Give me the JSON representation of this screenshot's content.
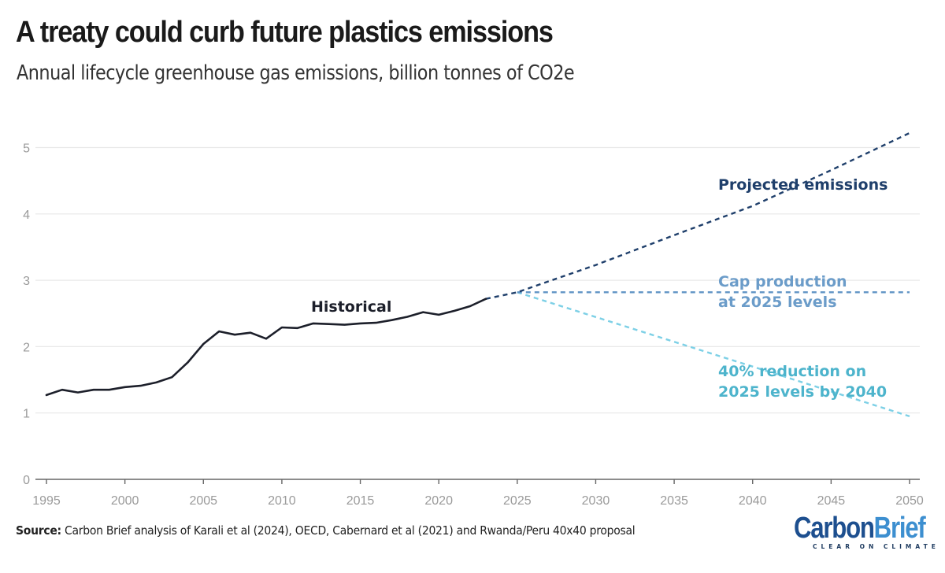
{
  "header": {
    "title": "A treaty could curb future plastics emissions",
    "subtitle": "Annual lifecycle greenhouse gas emissions, billion tonnes of CO2e"
  },
  "footer": {
    "source_label": "Source:",
    "source_text": " Carbon Brief analysis of Karali et al (2024), OECD, Cabernard et al (2021) and Rwanda/Peru 40x40 proposal"
  },
  "logo": {
    "word_part1": "Carbon",
    "word_part2": "Brief",
    "tagline": "CLEAR ON CLIMATE"
  },
  "chart_data": {
    "type": "line",
    "title": "A treaty could curb future plastics emissions",
    "subtitle": "Annual lifecycle greenhouse gas emissions, billion tonnes of CO2e",
    "xlabel": "",
    "ylabel": "",
    "xlim": [
      1995,
      2050
    ],
    "ylim": [
      0,
      5.3
    ],
    "x_ticks": [
      1995,
      2000,
      2005,
      2010,
      2015,
      2020,
      2025,
      2030,
      2035,
      2040,
      2045,
      2050
    ],
    "y_ticks": [
      0,
      1,
      2,
      3,
      4,
      5
    ],
    "grid": "horizontal",
    "legend": "inline annotations",
    "series": [
      {
        "name": "Historical",
        "style": "solid",
        "color": "#1c1f2a",
        "x": [
          1995,
          1996,
          1997,
          1998,
          1999,
          2000,
          2001,
          2002,
          2003,
          2004,
          2005,
          2006,
          2007,
          2008,
          2009,
          2010,
          2011,
          2012,
          2013,
          2014,
          2015,
          2016,
          2017,
          2018,
          2019,
          2020,
          2021,
          2022,
          2023
        ],
        "values": [
          1.27,
          1.35,
          1.31,
          1.35,
          1.35,
          1.39,
          1.41,
          1.46,
          1.54,
          1.76,
          2.04,
          2.23,
          2.18,
          2.21,
          2.12,
          2.29,
          2.28,
          2.35,
          2.34,
          2.33,
          2.35,
          2.36,
          2.4,
          2.45,
          2.52,
          2.48,
          2.54,
          2.61,
          2.72
        ]
      },
      {
        "name": "Projected emissions",
        "style": "dashed",
        "color": "#1f3f6b",
        "x": [
          2023,
          2025,
          2030,
          2035,
          2040,
          2045,
          2050
        ],
        "values": [
          2.72,
          2.82,
          3.23,
          3.68,
          4.12,
          4.66,
          5.22
        ]
      },
      {
        "name": "Cap production at 2025 levels",
        "style": "dashed",
        "color": "#5f93c4",
        "x": [
          2025,
          2050
        ],
        "values": [
          2.82,
          2.82
        ]
      },
      {
        "name": "40% reduction on 2025 levels by 2040",
        "style": "dashed",
        "color": "#7dd0e6",
        "x": [
          2025,
          2040,
          2050
        ],
        "values": [
          2.82,
          1.7,
          0.95
        ]
      }
    ],
    "annotations": [
      {
        "text": "Historical",
        "series": "Historical",
        "color": "#1c1f2a",
        "lines": [
          "Historical"
        ]
      },
      {
        "text": "Projected emissions",
        "series": "Projected emissions",
        "color": "#1f3f6b",
        "lines": [
          "Projected emissions"
        ]
      },
      {
        "text": "Cap production at 2025 levels",
        "series": "Cap production at 2025 levels",
        "color": "#6b9cc9",
        "lines": [
          "Cap production",
          "at 2025 levels"
        ]
      },
      {
        "text": "40% reduction on 2025 levels by 2040",
        "series": "40% reduction on 2025 levels by 2040",
        "color": "#4db4cc",
        "lines": [
          "40% reduction on",
          "2025 levels by 2040"
        ]
      }
    ]
  }
}
